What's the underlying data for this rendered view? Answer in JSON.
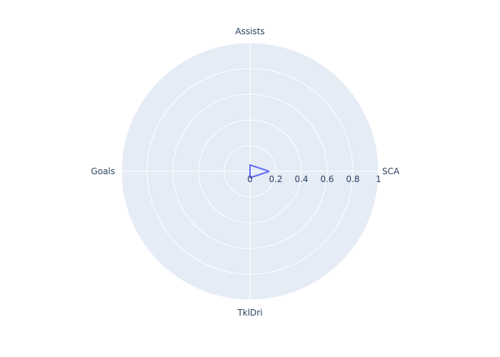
{
  "chart_data": {
    "type": "radar",
    "categories": [
      "SCA",
      "Assists",
      "Goals",
      "TklDri"
    ],
    "radial_range": [
      0,
      1
    ],
    "radial_ticks": [
      "0",
      "0.2",
      "0.4",
      "0.6",
      "0.8",
      "1"
    ],
    "series": [
      {
        "values": [
          0.15,
          0.05,
          0.0,
          0.05
        ],
        "closed": true
      }
    ],
    "grid": true,
    "colors": {
      "background": "#e5ecf6",
      "grid": "#ffffff",
      "series": "#636efa",
      "text": "#2a3f5f"
    }
  }
}
